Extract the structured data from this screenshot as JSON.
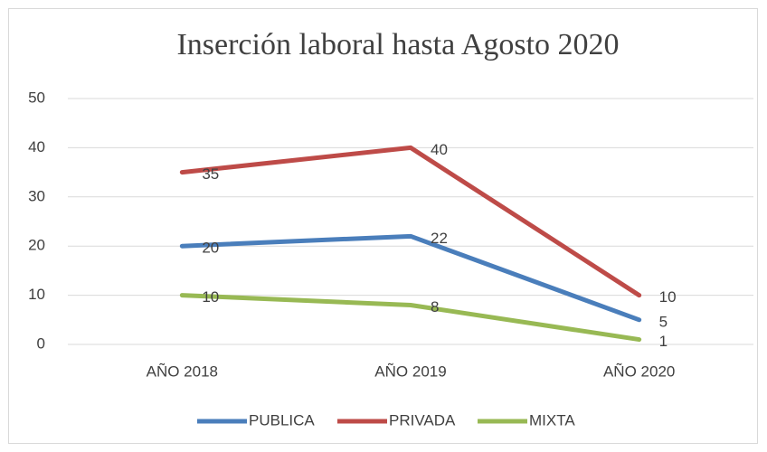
{
  "chart_data": {
    "type": "line",
    "title": "Inserción laboral hasta Agosto 2020",
    "categories": [
      "AÑO 2018",
      "AÑO 2019",
      "AÑO 2020"
    ],
    "series": [
      {
        "name": "PUBLICA",
        "color": "#4a7ebb",
        "values": [
          20,
          22,
          5
        ]
      },
      {
        "name": "PRIVADA",
        "color": "#be4b48",
        "values": [
          35,
          40,
          10
        ]
      },
      {
        "name": "MIXTA",
        "color": "#98b954",
        "values": [
          10,
          8,
          1
        ]
      }
    ],
    "ylim": [
      0,
      50
    ],
    "yticks": [
      0,
      10,
      20,
      30,
      40,
      50
    ],
    "grid": true,
    "legend": "bottom"
  }
}
